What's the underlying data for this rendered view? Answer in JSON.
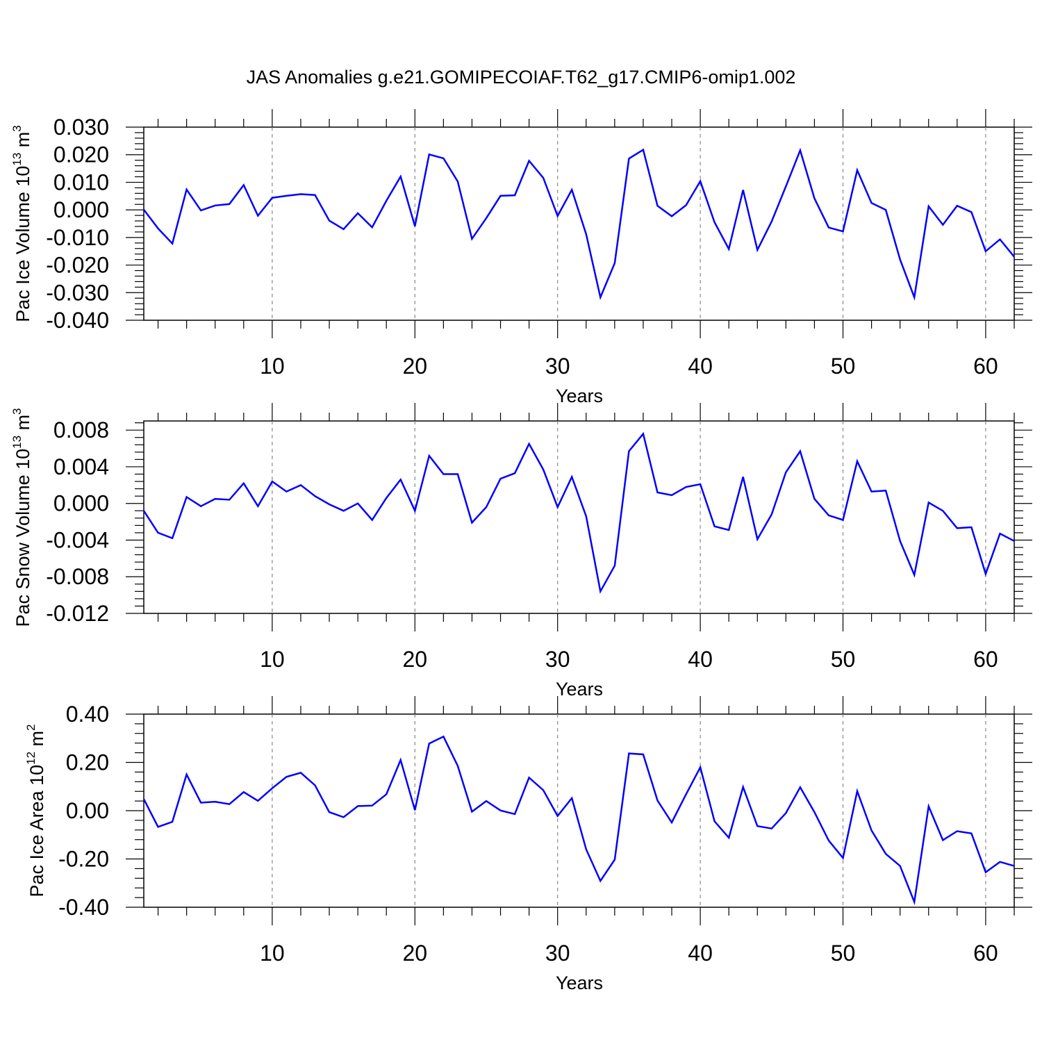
{
  "title": "JAS Anomalies g.e21.GOMIPECOIAF.T62_g17.CMIP6-omip1.002",
  "line_color": "#0000ff",
  "chart_data": [
    {
      "type": "line",
      "ylabel": {
        "main": "Pac Ice Volume 10",
        "sup": "13",
        "unit": " m",
        "unit_sup": "3"
      },
      "xlabel": "Years",
      "xlim": [
        1,
        62
      ],
      "ylim": [
        -0.04,
        0.03
      ],
      "x_ticks": [
        10,
        20,
        30,
        40,
        50,
        60
      ],
      "x_tick_labels": [
        "10",
        "20",
        "30",
        "40",
        "50",
        "60"
      ],
      "y_ticks": [
        0.03,
        0.02,
        0.01,
        0.0,
        -0.01,
        -0.02,
        -0.03,
        -0.04
      ],
      "y_tick_labels": [
        "0.030",
        "0.020",
        "0.010",
        "0.000",
        "-0.010",
        "-0.020",
        "-0.030",
        "-0.040"
      ],
      "grid": "vertical dashed lines at labeled x ticks",
      "x": [
        1,
        2,
        3,
        4,
        5,
        6,
        7,
        8,
        9,
        10,
        11,
        12,
        13,
        14,
        15,
        16,
        17,
        18,
        19,
        20,
        21,
        22,
        23,
        24,
        25,
        26,
        27,
        28,
        29,
        30,
        31,
        32,
        33,
        34,
        35,
        36,
        37,
        38,
        39,
        40,
        41,
        42,
        43,
        44,
        45,
        46,
        47,
        48,
        49,
        50,
        51,
        52,
        53,
        54,
        55,
        56,
        57,
        58,
        59,
        60,
        61,
        62
      ],
      "y": [
        0.0001,
        -0.0067,
        -0.0122,
        0.0074,
        -0.0002,
        0.0016,
        0.0021,
        0.009,
        -0.0021,
        0.0044,
        0.0051,
        0.0057,
        0.0054,
        -0.0039,
        -0.007,
        -0.0012,
        -0.0063,
        0.0033,
        0.0121,
        -0.0059,
        0.0201,
        0.0187,
        0.0103,
        -0.0105,
        -0.003,
        0.0051,
        0.0053,
        0.0178,
        0.0116,
        -0.0022,
        0.0073,
        -0.0088,
        -0.0317,
        -0.0193,
        0.0186,
        0.0218,
        0.0015,
        -0.0023,
        0.0017,
        0.0104,
        -0.0045,
        -0.0142,
        0.0072,
        -0.0145,
        -0.0042,
        0.0085,
        0.0216,
        0.0042,
        -0.0064,
        -0.0078,
        0.0144,
        0.0025,
        0.0,
        -0.018,
        -0.0317,
        0.0013,
        -0.0054,
        0.0015,
        -0.0008,
        -0.015,
        -0.0107,
        -0.017
      ]
    },
    {
      "type": "line",
      "ylabel": {
        "main": "Pac Snow Volume 10",
        "sup": "13",
        "unit": " m",
        "unit_sup": "3"
      },
      "xlabel": "Years",
      "xlim": [
        1,
        62
      ],
      "ylim": [
        -0.012,
        0.009
      ],
      "x_ticks": [
        10,
        20,
        30,
        40,
        50,
        60
      ],
      "x_tick_labels": [
        "10",
        "20",
        "30",
        "40",
        "50",
        "60"
      ],
      "y_ticks": [
        0.008,
        0.004,
        0.0,
        -0.004,
        -0.008,
        -0.012
      ],
      "y_tick_labels": [
        "0.008",
        "0.004",
        "0.000",
        "-0.004",
        "-0.008",
        "-0.012"
      ],
      "grid": "vertical dashed lines at labeled x ticks",
      "x": [
        1,
        2,
        3,
        4,
        5,
        6,
        7,
        8,
        9,
        10,
        11,
        12,
        13,
        14,
        15,
        16,
        17,
        18,
        19,
        20,
        21,
        22,
        23,
        24,
        25,
        26,
        27,
        28,
        29,
        30,
        31,
        32,
        33,
        34,
        35,
        36,
        37,
        38,
        39,
        40,
        41,
        42,
        43,
        44,
        45,
        46,
        47,
        48,
        49,
        50,
        51,
        52,
        53,
        54,
        55,
        56,
        57,
        58,
        59,
        60,
        61,
        62
      ],
      "y": [
        -0.0008,
        -0.0032,
        -0.0038,
        0.0007,
        -0.0003,
        0.0005,
        0.0004,
        0.0022,
        -0.0003,
        0.0024,
        0.0013,
        0.002,
        0.0008,
        -0.0001,
        -0.0008,
        -0.0,
        -0.0018,
        0.0006,
        0.0026,
        -0.0008,
        0.0052,
        0.0032,
        0.0032,
        -0.0021,
        -0.0004,
        0.0027,
        0.0033,
        0.0065,
        0.0037,
        -0.0004,
        0.0029,
        -0.0014,
        -0.0096,
        -0.0068,
        0.0057,
        0.0076,
        0.0012,
        0.0009,
        0.0018,
        0.0021,
        -0.0025,
        -0.0029,
        0.0029,
        -0.0039,
        -0.0012,
        0.0034,
        0.0057,
        0.0005,
        -0.0013,
        -0.0018,
        0.0046,
        0.0013,
        0.0014,
        -0.0041,
        -0.0078,
        0.0001,
        -0.0008,
        -0.0027,
        -0.0026,
        -0.0077,
        -0.0033,
        -0.0041
      ]
    },
    {
      "type": "line",
      "ylabel": {
        "main": "Pac Ice Area 10",
        "sup": "12",
        "unit": " m",
        "unit_sup": "2"
      },
      "xlabel": "Years",
      "xlim": [
        1,
        62
      ],
      "ylim": [
        -0.4,
        0.4
      ],
      "x_ticks": [
        10,
        20,
        30,
        40,
        50,
        60
      ],
      "x_tick_labels": [
        "10",
        "20",
        "30",
        "40",
        "50",
        "60"
      ],
      "y_ticks": [
        0.4,
        0.2,
        0.0,
        -0.2,
        -0.4
      ],
      "y_tick_labels": [
        "0.40",
        "0.20",
        "0.00",
        "-0.20",
        "-0.40"
      ],
      "grid": "vertical dashed lines at labeled x ticks",
      "x": [
        1,
        2,
        3,
        4,
        5,
        6,
        7,
        8,
        9,
        10,
        11,
        12,
        13,
        14,
        15,
        16,
        17,
        18,
        19,
        20,
        21,
        22,
        23,
        24,
        25,
        26,
        27,
        28,
        29,
        30,
        31,
        32,
        33,
        34,
        35,
        36,
        37,
        38,
        39,
        40,
        41,
        42,
        43,
        44,
        45,
        46,
        47,
        48,
        49,
        50,
        51,
        52,
        53,
        54,
        55,
        56,
        57,
        58,
        59,
        60,
        61,
        62
      ],
      "y": [
        0.048,
        -0.067,
        -0.046,
        0.15,
        0.033,
        0.037,
        0.027,
        0.077,
        0.041,
        0.093,
        0.14,
        0.157,
        0.105,
        -0.006,
        -0.027,
        0.019,
        0.021,
        0.068,
        0.21,
        0.002,
        0.278,
        0.307,
        0.186,
        -0.004,
        0.04,
        0.001,
        -0.014,
        0.137,
        0.085,
        -0.022,
        0.052,
        -0.16,
        -0.291,
        -0.203,
        0.237,
        0.233,
        0.042,
        -0.049,
        0.068,
        0.18,
        -0.044,
        -0.112,
        0.098,
        -0.064,
        -0.074,
        -0.01,
        0.097,
        -0.006,
        -0.124,
        -0.196,
        0.081,
        -0.082,
        -0.179,
        -0.229,
        -0.378,
        0.018,
        -0.122,
        -0.085,
        -0.094,
        -0.255,
        -0.212,
        -0.229
      ]
    }
  ]
}
